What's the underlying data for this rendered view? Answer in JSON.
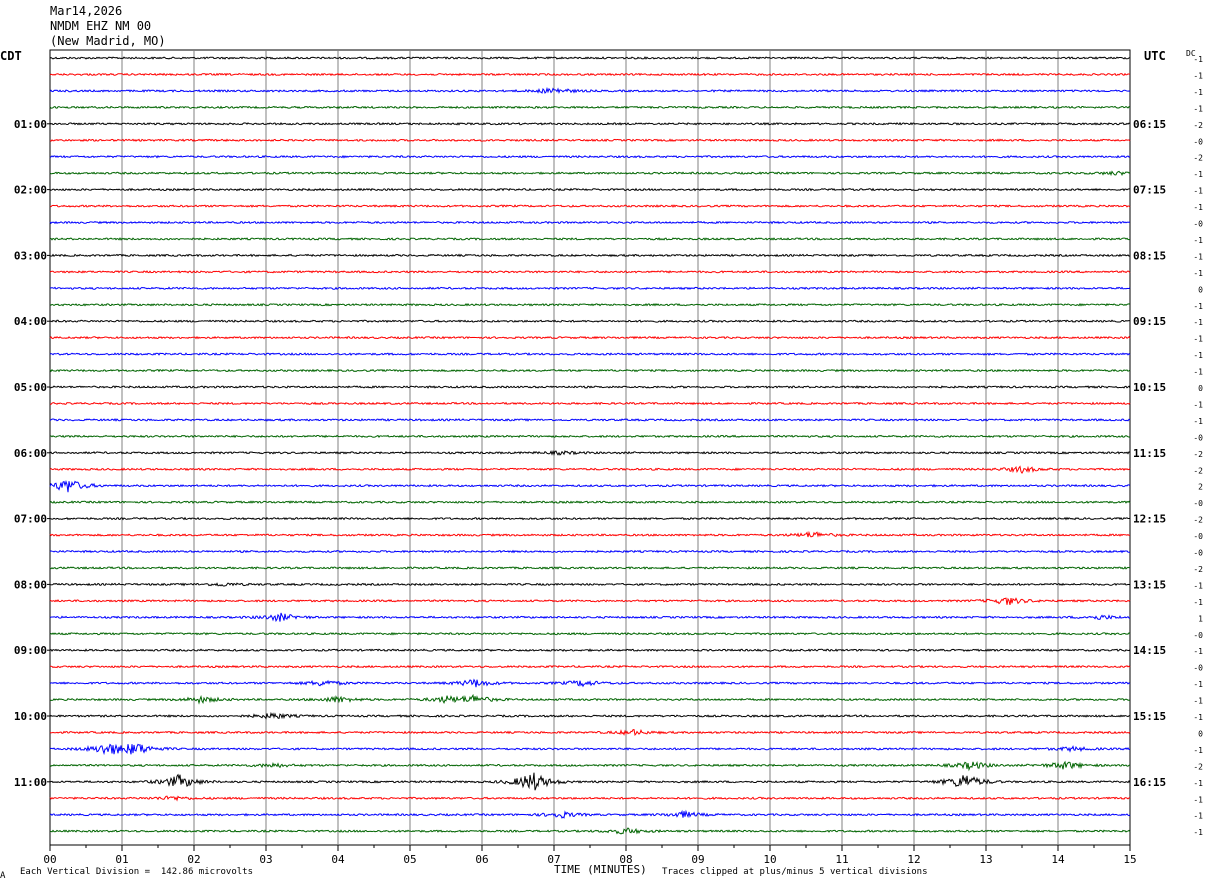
{
  "header": {
    "date": "Mar14,2026",
    "station": "NMDM EHZ NM 00",
    "location": "(New Madrid, MO)"
  },
  "left_zone": "CDT",
  "right_zone": "UTC",
  "dc_label": "DC",
  "footer": {
    "scale": "Each Vertical Division =  142.86 microvolts",
    "xlabel": "TIME (MINUTES)",
    "clip": "Traces clipped at plus/minus 5 vertical divisions",
    "corner": "A"
  },
  "colors": {
    "cycle": [
      "#000000",
      "#ff0000",
      "#0000ff",
      "#006400"
    ],
    "grid": "#808080"
  },
  "chart_data": {
    "type": "line",
    "xlabel": "TIME (MINUTES)",
    "xlim": [
      0,
      15
    ],
    "x_ticks": [
      "00",
      "01",
      "02",
      "03",
      "04",
      "05",
      "06",
      "07",
      "08",
      "09",
      "10",
      "11",
      "12",
      "13",
      "14",
      "15"
    ],
    "rows": 48,
    "left_time_labels": [
      "01:00",
      "02:00",
      "03:00",
      "04:00",
      "05:00",
      "06:00",
      "07:00",
      "08:00",
      "09:00",
      "10:00",
      "11:00"
    ],
    "right_time_labels": [
      "06:15",
      "07:15",
      "08:15",
      "09:15",
      "10:15",
      "11:15",
      "12:15",
      "13:15",
      "14:15",
      "15:15",
      "16:15"
    ],
    "hour_label_rows": [
      4,
      8,
      12,
      16,
      20,
      24,
      28,
      32,
      36,
      40,
      44
    ],
    "dc_offsets": [
      "-1",
      "-1",
      "-1",
      "-1",
      "-2",
      "-0",
      "-2",
      "-1",
      "-1",
      "-1",
      "-0",
      "-1",
      "-1",
      "-1",
      "0",
      "-1",
      "-1",
      "-1",
      "-1",
      "-1",
      "0",
      "-1",
      "-1",
      "-0",
      "-2",
      "-2",
      "2",
      "-0",
      "-2",
      "-0",
      "-0",
      "-2",
      "-1",
      "-1",
      "1",
      "-0",
      "-1",
      "-0",
      "-1",
      "-1",
      "-1",
      "0",
      "-1",
      "-2",
      "-1",
      "-1",
      "-1",
      "-1"
    ],
    "events": [
      {
        "row": 2,
        "minute": 7.0,
        "amp": 3
      },
      {
        "row": 7,
        "minute": 14.8,
        "amp": 1.5
      },
      {
        "row": 24,
        "minute": 7.1,
        "amp": 1.5
      },
      {
        "row": 25,
        "minute": 13.5,
        "amp": 3
      },
      {
        "row": 26,
        "minute": 0.25,
        "amp": 7
      },
      {
        "row": 29,
        "minute": 10.6,
        "amp": 3
      },
      {
        "row": 32,
        "minute": 2.4,
        "amp": 1.5
      },
      {
        "row": 33,
        "minute": 13.3,
        "amp": 4
      },
      {
        "row": 34,
        "minute": 3.2,
        "amp": 4
      },
      {
        "row": 34,
        "minute": 14.6,
        "amp": 2
      },
      {
        "row": 38,
        "minute": 3.8,
        "amp": 3
      },
      {
        "row": 38,
        "minute": 5.9,
        "amp": 4
      },
      {
        "row": 38,
        "minute": 7.4,
        "amp": 3
      },
      {
        "row": 39,
        "minute": 2.1,
        "amp": 3
      },
      {
        "row": 39,
        "minute": 4.0,
        "amp": 3
      },
      {
        "row": 39,
        "minute": 5.5,
        "amp": 3
      },
      {
        "row": 39,
        "minute": 5.9,
        "amp": 4
      },
      {
        "row": 40,
        "minute": 3.1,
        "amp": 3
      },
      {
        "row": 41,
        "minute": 8.1,
        "amp": 2.5
      },
      {
        "row": 42,
        "minute": 0.8,
        "amp": 6
      },
      {
        "row": 42,
        "minute": 1.2,
        "amp": 6
      },
      {
        "row": 42,
        "minute": 14.2,
        "amp": 2
      },
      {
        "row": 43,
        "minute": 3.1,
        "amp": 2
      },
      {
        "row": 43,
        "minute": 12.8,
        "amp": 4
      },
      {
        "row": 43,
        "minute": 14.1,
        "amp": 4
      },
      {
        "row": 44,
        "minute": 1.8,
        "amp": 7
      },
      {
        "row": 44,
        "minute": 6.7,
        "amp": 10
      },
      {
        "row": 44,
        "minute": 12.7,
        "amp": 8
      },
      {
        "row": 45,
        "minute": 1.7,
        "amp": 2
      },
      {
        "row": 46,
        "minute": 7.1,
        "amp": 3
      },
      {
        "row": 46,
        "minute": 8.8,
        "amp": 3
      },
      {
        "row": 47,
        "minute": 8.0,
        "amp": 3
      }
    ]
  }
}
